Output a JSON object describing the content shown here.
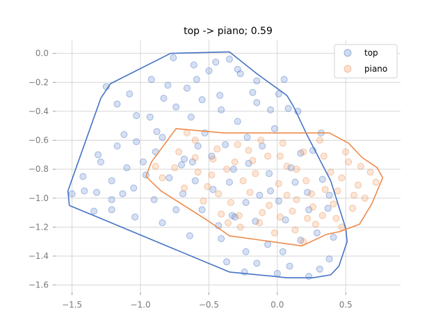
{
  "chart_data": {
    "type": "scatter",
    "title": "top -> piano; 0.59",
    "xlabel": "",
    "ylabel": "",
    "xlim": [
      -1.62,
      0.9
    ],
    "ylim": [
      -1.65,
      0.09
    ],
    "xticks": [
      -1.5,
      -1.0,
      -0.5,
      0.0,
      0.5
    ],
    "xtick_labels": [
      "−1.5",
      "−1.0",
      "−0.5",
      "0.0",
      "0.5"
    ],
    "yticks": [
      0.0,
      -0.2,
      -0.4,
      -0.6,
      -0.8,
      -1.0,
      -1.2,
      -1.4,
      -1.6
    ],
    "ytick_labels": [
      "0.0",
      "−0.2",
      "−0.4",
      "−0.6",
      "−0.8",
      "−1.0",
      "−1.2",
      "−1.4",
      "−1.6"
    ],
    "grid": true,
    "legend_position": "top-right",
    "series": [
      {
        "name": "top",
        "color": "#4472c4",
        "hull": [
          [
            -1.52,
            -1.05
          ],
          [
            -1.53,
            -0.95
          ],
          [
            -1.29,
            -0.31
          ],
          [
            -1.22,
            -0.21
          ],
          [
            -0.78,
            0.0
          ],
          [
            -0.35,
            0.01
          ],
          [
            -0.15,
            -0.14
          ],
          [
            0.07,
            -0.29
          ],
          [
            0.12,
            -0.37
          ],
          [
            0.22,
            -0.57
          ],
          [
            0.39,
            -0.88
          ],
          [
            0.5,
            -1.21
          ],
          [
            0.51,
            -1.3
          ],
          [
            0.45,
            -1.47
          ],
          [
            0.39,
            -1.53
          ],
          [
            0.26,
            -1.55
          ],
          [
            0.07,
            -1.55
          ],
          [
            -0.03,
            -1.54
          ],
          [
            -0.35,
            -1.51
          ],
          [
            -1.52,
            -1.05
          ]
        ],
        "points": [
          [
            -1.41,
            -0.95
          ],
          [
            -1.31,
            -0.7
          ],
          [
            -1.12,
            -0.56
          ],
          [
            -0.88,
            -0.54
          ],
          [
            -0.7,
            -0.77
          ],
          [
            -0.68,
            -0.73
          ],
          [
            -0.9,
            -1.01
          ],
          [
            -0.69,
            -0.97
          ],
          [
            -0.43,
            -1.19
          ],
          [
            -0.33,
            -1.12
          ],
          [
            -0.07,
            -1.32
          ],
          [
            0.04,
            -1.37
          ],
          [
            0.23,
            -1.08
          ],
          [
            -0.05,
            -0.95
          ],
          [
            0.01,
            -1.02
          ],
          [
            -0.16,
            -1.16
          ],
          [
            -0.31,
            -1.13
          ],
          [
            -0.23,
            -1.03
          ],
          [
            -0.35,
            -0.89
          ],
          [
            -0.62,
            -0.75
          ],
          [
            -0.84,
            -0.58
          ],
          [
            -0.83,
            -0.31
          ],
          [
            -0.59,
            -0.18
          ],
          [
            -0.42,
            -0.29
          ],
          [
            -0.29,
            -0.11
          ],
          [
            -0.18,
            -0.27
          ],
          [
            -0.05,
            -0.39
          ],
          [
            0.15,
            -0.4
          ],
          [
            0.32,
            -0.55
          ],
          [
            0.26,
            -0.67
          ],
          [
            0.17,
            -0.69
          ],
          [
            0.1,
            -0.79
          ],
          [
            0.33,
            -0.87
          ],
          [
            0.38,
            -0.98
          ],
          [
            0.37,
            -1.07
          ],
          [
            0.41,
            -1.27
          ],
          [
            0.38,
            -1.42
          ],
          [
            0.31,
            -1.49
          ],
          [
            0.23,
            -1.54
          ],
          [
            0.0,
            -1.52
          ],
          [
            -0.24,
            -1.51
          ],
          [
            -0.37,
            -1.44
          ],
          [
            -0.64,
            -1.26
          ],
          [
            -0.84,
            -1.17
          ],
          [
            -1.04,
            -1.13
          ],
          [
            -1.21,
            -1.08
          ],
          [
            -1.34,
            -1.09
          ],
          [
            -1.5,
            -0.97
          ],
          [
            -1.42,
            -0.85
          ],
          [
            -1.29,
            -0.75
          ],
          [
            -1.17,
            -0.64
          ],
          [
            -1.03,
            -0.43
          ],
          [
            -1.17,
            -0.35
          ],
          [
            -1.25,
            -0.23
          ],
          [
            -1.08,
            -0.28
          ],
          [
            -0.92,
            -0.18
          ],
          [
            -0.76,
            -0.03
          ],
          [
            -0.61,
            -0.08
          ],
          [
            -0.45,
            -0.06
          ],
          [
            -0.35,
            -0.04
          ],
          [
            -0.27,
            -0.14
          ],
          [
            -0.15,
            -0.19
          ],
          [
            0.01,
            -0.28
          ],
          [
            0.08,
            -0.38
          ],
          [
            -0.02,
            -0.52
          ],
          [
            -0.11,
            -0.64
          ],
          [
            -0.22,
            -0.58
          ],
          [
            -0.38,
            -0.63
          ],
          [
            -0.53,
            -0.55
          ],
          [
            -0.63,
            -0.44
          ],
          [
            -0.74,
            -0.37
          ],
          [
            -0.93,
            -0.44
          ],
          [
            -1.03,
            -0.61
          ],
          [
            -1.1,
            -0.79
          ],
          [
            -1.21,
            -0.88
          ],
          [
            -1.32,
            -0.96
          ],
          [
            -1.21,
            -1.01
          ],
          [
            -1.05,
            -0.93
          ],
          [
            -0.96,
            -0.84
          ],
          [
            -0.79,
            -0.86
          ],
          [
            -0.6,
            -0.88
          ],
          [
            -0.47,
            -0.94
          ],
          [
            -0.55,
            -1.08
          ],
          [
            -0.41,
            -1.28
          ],
          [
            -0.23,
            -1.37
          ],
          [
            -0.15,
            -1.45
          ],
          [
            0.09,
            -1.47
          ],
          [
            0.17,
            -1.29
          ],
          [
            0.29,
            -1.24
          ],
          [
            0.22,
            -0.96
          ],
          [
            0.13,
            -0.89
          ],
          [
            -0.06,
            -0.83
          ],
          [
            -0.21,
            -0.76
          ],
          [
            -0.48,
            -0.71
          ],
          [
            -0.29,
            -0.47
          ],
          [
            -0.55,
            -0.32
          ],
          [
            -0.66,
            -0.24
          ],
          [
            -0.5,
            -0.12
          ],
          [
            -0.15,
            -0.34
          ],
          [
            0.05,
            -0.18
          ],
          [
            -0.89,
            -0.68
          ],
          [
            -0.98,
            -0.75
          ],
          [
            -1.13,
            -0.97
          ],
          [
            -0.74,
            -1.08
          ],
          [
            -0.32,
            -0.8
          ],
          [
            -0.13,
            -0.98
          ],
          [
            0.06,
            -1.15
          ],
          [
            -0.58,
            -0.64
          ],
          [
            -0.41,
            -0.39
          ],
          [
            -0.8,
            -0.22
          ]
        ]
      },
      {
        "name": "piano",
        "color": "#ed8b4b",
        "hull": [
          [
            -0.96,
            -0.85
          ],
          [
            -0.92,
            -0.75
          ],
          [
            -0.74,
            -0.52
          ],
          [
            -0.39,
            -0.55
          ],
          [
            0.38,
            -0.55
          ],
          [
            0.52,
            -0.62
          ],
          [
            0.62,
            -0.72
          ],
          [
            0.73,
            -0.79
          ],
          [
            0.77,
            -0.86
          ],
          [
            0.69,
            -1.04
          ],
          [
            0.6,
            -1.18
          ],
          [
            0.46,
            -1.23
          ],
          [
            0.36,
            -1.25
          ],
          [
            0.18,
            -1.33
          ],
          [
            -0.35,
            -1.26
          ],
          [
            -0.5,
            -1.16
          ],
          [
            -0.85,
            -0.95
          ],
          [
            -0.96,
            -0.85
          ]
        ],
        "points": [
          [
            -0.84,
            -0.86
          ],
          [
            -0.72,
            -0.68
          ],
          [
            -0.6,
            -0.6
          ],
          [
            -0.44,
            -0.66
          ],
          [
            -0.31,
            -0.75
          ],
          [
            -0.16,
            -0.83
          ],
          [
            0.01,
            -0.9
          ],
          [
            0.14,
            -1.01
          ],
          [
            0.26,
            -1.06
          ],
          [
            0.41,
            -1.04
          ],
          [
            0.59,
            -0.91
          ],
          [
            0.68,
            -0.82
          ],
          [
            0.52,
            -0.75
          ],
          [
            0.34,
            -0.71
          ],
          [
            0.19,
            -0.68
          ],
          [
            0.04,
            -0.62
          ],
          [
            -0.12,
            -0.6
          ],
          [
            -0.29,
            -0.63
          ],
          [
            -0.47,
            -0.73
          ],
          [
            -0.58,
            -0.82
          ],
          [
            -0.68,
            -0.93
          ],
          [
            -0.54,
            -1.02
          ],
          [
            -0.41,
            -1.11
          ],
          [
            -0.27,
            -1.2
          ],
          [
            -0.13,
            -1.17
          ],
          [
            0.02,
            -1.13
          ],
          [
            0.13,
            -1.22
          ],
          [
            0.28,
            -1.18
          ],
          [
            0.43,
            -1.14
          ],
          [
            0.55,
            -1.07
          ],
          [
            0.64,
            -1.0
          ],
          [
            0.72,
            -0.89
          ],
          [
            0.47,
            -0.86
          ],
          [
            0.35,
            -0.94
          ],
          [
            0.21,
            -0.88
          ],
          [
            0.07,
            -0.78
          ],
          [
            -0.07,
            -0.71
          ],
          [
            -0.21,
            -0.67
          ],
          [
            -0.37,
            -0.8
          ],
          [
            -0.51,
            -0.92
          ],
          [
            -0.34,
            -1.03
          ],
          [
            -0.2,
            -0.96
          ],
          [
            -0.06,
            -1.05
          ],
          [
            0.11,
            -1.09
          ],
          [
            0.25,
            -0.97
          ],
          [
            0.39,
            -0.82
          ],
          [
            0.5,
            -0.68
          ],
          [
            0.31,
            -0.6
          ],
          [
            -0.89,
            -0.78
          ],
          [
            -0.75,
            -0.79
          ],
          [
            -0.66,
            -0.55
          ],
          [
            -0.02,
            -1.24
          ],
          [
            0.19,
            -1.3
          ],
          [
            0.07,
            -0.98
          ],
          [
            -0.25,
            -0.88
          ],
          [
            0.61,
            -0.78
          ],
          [
            0.44,
            -0.95
          ],
          [
            -0.43,
            -0.97
          ],
          [
            -0.6,
            -0.72
          ],
          [
            0.14,
            -0.8
          ],
          [
            -0.11,
            -1.1
          ],
          [
            0.33,
            -1.12
          ],
          [
            -0.36,
            -1.17
          ],
          [
            0.56,
            -0.98
          ],
          [
            -0.18,
            -0.74
          ],
          [
            0.02,
            -0.71
          ],
          [
            0.22,
            -1.14
          ],
          [
            -0.48,
            -0.84
          ],
          [
            0.47,
            -1.2
          ],
          [
            -0.28,
            -1.12
          ]
        ]
      }
    ]
  }
}
